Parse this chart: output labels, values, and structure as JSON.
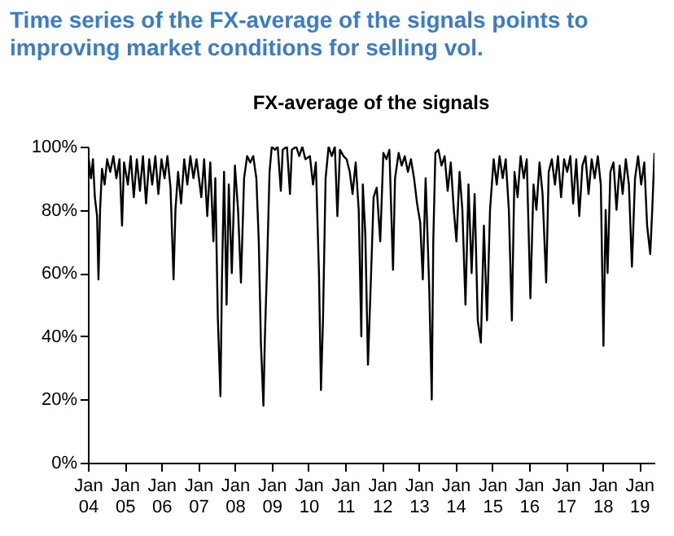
{
  "chart_data": {
    "type": "line",
    "title": "Time series of the FX-average of the signals points to improving market conditions for selling vol.",
    "subtitle": "FX-average of the signals",
    "x": [
      "2004-01-05",
      "2004-02-01",
      "2004-02-20",
      "2004-03-10",
      "2004-04-01",
      "2004-04-15",
      "2004-05-01",
      "2004-05-20",
      "2004-06-15",
      "2004-07-10",
      "2004-08-10",
      "2004-09-10",
      "2004-10-10",
      "2004-11-10",
      "2004-12-05",
      "2004-12-25",
      "2005-02-01",
      "2005-03-01",
      "2005-04-01",
      "2005-05-01",
      "2005-06-01",
      "2005-07-01",
      "2005-08-01",
      "2005-09-01",
      "2005-10-01",
      "2005-11-01",
      "2005-12-01",
      "2006-01-01",
      "2006-02-01",
      "2006-03-01",
      "2006-04-01",
      "2006-05-01",
      "2006-05-20",
      "2006-06-15",
      "2006-07-15",
      "2006-08-15",
      "2006-09-15",
      "2006-10-15",
      "2006-11-15",
      "2006-12-15",
      "2007-02-01",
      "2007-03-01",
      "2007-04-01",
      "2007-05-01",
      "2007-06-01",
      "2007-06-20",
      "2007-07-15",
      "2007-08-10",
      "2007-08-25",
      "2007-09-15",
      "2007-10-10",
      "2007-11-01",
      "2007-12-01",
      "2008-01-01",
      "2008-02-01",
      "2008-03-01",
      "2008-04-01",
      "2008-05-01",
      "2008-06-01",
      "2008-07-01",
      "2008-08-01",
      "2008-08-25",
      "2008-09-15",
      "2008-10-10",
      "2008-10-25",
      "2008-11-15",
      "2008-12-10",
      "2009-01-01",
      "2009-02-01",
      "2009-03-01",
      "2009-04-01",
      "2009-04-20",
      "2009-06-01",
      "2009-07-01",
      "2009-07-20",
      "2009-09-01",
      "2009-10-01",
      "2009-11-01",
      "2009-12-01",
      "2010-01-15",
      "2010-02-15",
      "2010-03-15",
      "2010-04-15",
      "2010-05-05",
      "2010-05-25",
      "2010-06-20",
      "2010-07-20",
      "2010-08-20",
      "2010-09-20",
      "2010-10-15",
      "2010-11-10",
      "2010-12-15",
      "2011-01-15",
      "2011-02-15",
      "2011-03-15",
      "2011-04-15",
      "2011-05-15",
      "2011-06-10",
      "2011-06-25",
      "2011-07-20",
      "2011-08-15",
      "2011-09-10",
      "2011-10-10",
      "2011-11-10",
      "2011-12-15",
      "2012-01-15",
      "2012-02-15",
      "2012-03-15",
      "2012-04-20",
      "2012-05-10",
      "2012-06-15",
      "2012-07-15",
      "2012-08-15",
      "2012-09-15",
      "2012-10-15",
      "2012-11-15",
      "2012-12-15",
      "2013-01-15",
      "2013-02-10",
      "2013-03-10",
      "2013-04-15",
      "2013-05-10",
      "2013-05-25",
      "2013-06-15",
      "2013-07-15",
      "2013-08-15",
      "2013-09-15",
      "2013-10-15",
      "2013-11-15",
      "2013-12-15",
      "2014-01-10",
      "2014-02-10",
      "2014-03-10",
      "2014-04-10",
      "2014-05-10",
      "2014-06-10",
      "2014-07-10",
      "2014-08-10",
      "2014-09-10",
      "2014-10-10",
      "2014-11-10",
      "2014-12-10",
      "2015-01-15",
      "2015-02-15",
      "2015-03-15",
      "2015-04-15",
      "2015-05-15",
      "2015-06-15",
      "2015-07-15",
      "2015-08-10",
      "2015-09-10",
      "2015-10-10",
      "2015-11-10",
      "2015-12-10",
      "2016-01-15",
      "2016-02-15",
      "2016-03-15",
      "2016-04-15",
      "2016-05-15",
      "2016-06-20",
      "2016-07-15",
      "2016-08-15",
      "2016-09-15",
      "2016-10-15",
      "2016-11-15",
      "2016-12-15",
      "2017-01-15",
      "2017-02-15",
      "2017-03-15",
      "2017-04-15",
      "2017-05-15",
      "2017-06-15",
      "2017-07-15",
      "2017-08-15",
      "2017-09-15",
      "2017-10-15",
      "2017-11-15",
      "2017-12-15",
      "2018-01-10",
      "2018-02-01",
      "2018-02-20",
      "2018-03-20",
      "2018-04-20",
      "2018-05-20",
      "2018-06-20",
      "2018-07-20",
      "2018-08-20",
      "2018-09-20",
      "2018-10-20",
      "2018-11-20",
      "2018-12-20",
      "2019-01-20",
      "2019-02-20",
      "2019-03-20",
      "2019-04-20",
      "2019-05-10",
      "2019-06-01"
    ],
    "values": [
      97,
      90,
      96,
      84,
      78,
      58,
      80,
      93,
      88,
      96,
      92,
      97,
      90,
      96,
      75,
      95,
      88,
      97,
      84,
      96,
      86,
      97,
      82,
      96,
      88,
      97,
      85,
      96,
      90,
      97,
      87,
      58,
      80,
      92,
      82,
      96,
      88,
      97,
      90,
      96,
      84,
      96,
      78,
      95,
      70,
      90,
      46,
      21,
      58,
      92,
      50,
      88,
      60,
      94,
      80,
      57,
      90,
      97,
      95,
      97,
      90,
      70,
      38,
      18,
      40,
      62,
      92,
      100,
      99,
      100,
      86,
      99,
      100,
      85,
      99,
      100,
      97,
      100,
      96,
      97,
      88,
      95,
      60,
      23,
      45,
      90,
      100,
      97,
      100,
      78,
      99,
      97,
      96,
      92,
      85,
      95,
      80,
      40,
      88,
      72,
      31,
      55,
      84,
      87,
      70,
      98,
      96,
      99,
      61,
      90,
      98,
      94,
      97,
      92,
      96,
      90,
      82,
      76,
      58,
      90,
      55,
      20,
      70,
      98,
      99,
      94,
      97,
      86,
      95,
      80,
      70,
      92,
      80,
      50,
      88,
      60,
      85,
      45,
      38,
      75,
      45,
      80,
      96,
      88,
      97,
      90,
      96,
      80,
      45,
      92,
      84,
      97,
      90,
      96,
      52,
      88,
      80,
      95,
      85,
      57,
      92,
      96,
      88,
      97,
      84,
      96,
      92,
      97,
      82,
      96,
      78,
      94,
      97,
      85,
      96,
      90,
      97,
      88,
      37,
      80,
      60,
      92,
      95,
      80,
      94,
      85,
      96,
      88,
      62,
      90,
      97,
      88,
      95,
      75,
      66,
      80,
      98
    ],
    "color": "#000000",
    "line_style": "solid",
    "grid": false,
    "xlim": [
      "2004-01-01",
      "2019-06-01"
    ],
    "xticks": [
      {
        "value": "2004-01-01",
        "label": "Jan 04"
      },
      {
        "value": "2005-01-01",
        "label": "Jan 05"
      },
      {
        "value": "2006-01-01",
        "label": "Jan 06"
      },
      {
        "value": "2007-01-01",
        "label": "Jan 07"
      },
      {
        "value": "2008-01-01",
        "label": "Jan 08"
      },
      {
        "value": "2009-01-01",
        "label": "Jan 09"
      },
      {
        "value": "2010-01-01",
        "label": "Jan 10"
      },
      {
        "value": "2011-01-01",
        "label": "Jan 11"
      },
      {
        "value": "2012-01-01",
        "label": "Jan 12"
      },
      {
        "value": "2013-01-01",
        "label": "Jan 13"
      },
      {
        "value": "2014-01-01",
        "label": "Jan 14"
      },
      {
        "value": "2015-01-01",
        "label": "Jan 15"
      },
      {
        "value": "2016-01-01",
        "label": "Jan 16"
      },
      {
        "value": "2017-01-01",
        "label": "Jan 17"
      },
      {
        "value": "2018-01-01",
        "label": "Jan 18"
      },
      {
        "value": "2019-01-01",
        "label": "Jan 19"
      }
    ],
    "ylim": [
      0,
      100
    ],
    "yticks": [
      {
        "value": 0,
        "label": "0%"
      },
      {
        "value": 20,
        "label": "20%"
      },
      {
        "value": 40,
        "label": "40%"
      },
      {
        "value": 60,
        "label": "60%"
      },
      {
        "value": 80,
        "label": "80%"
      },
      {
        "value": 100,
        "label": "100%"
      }
    ]
  }
}
